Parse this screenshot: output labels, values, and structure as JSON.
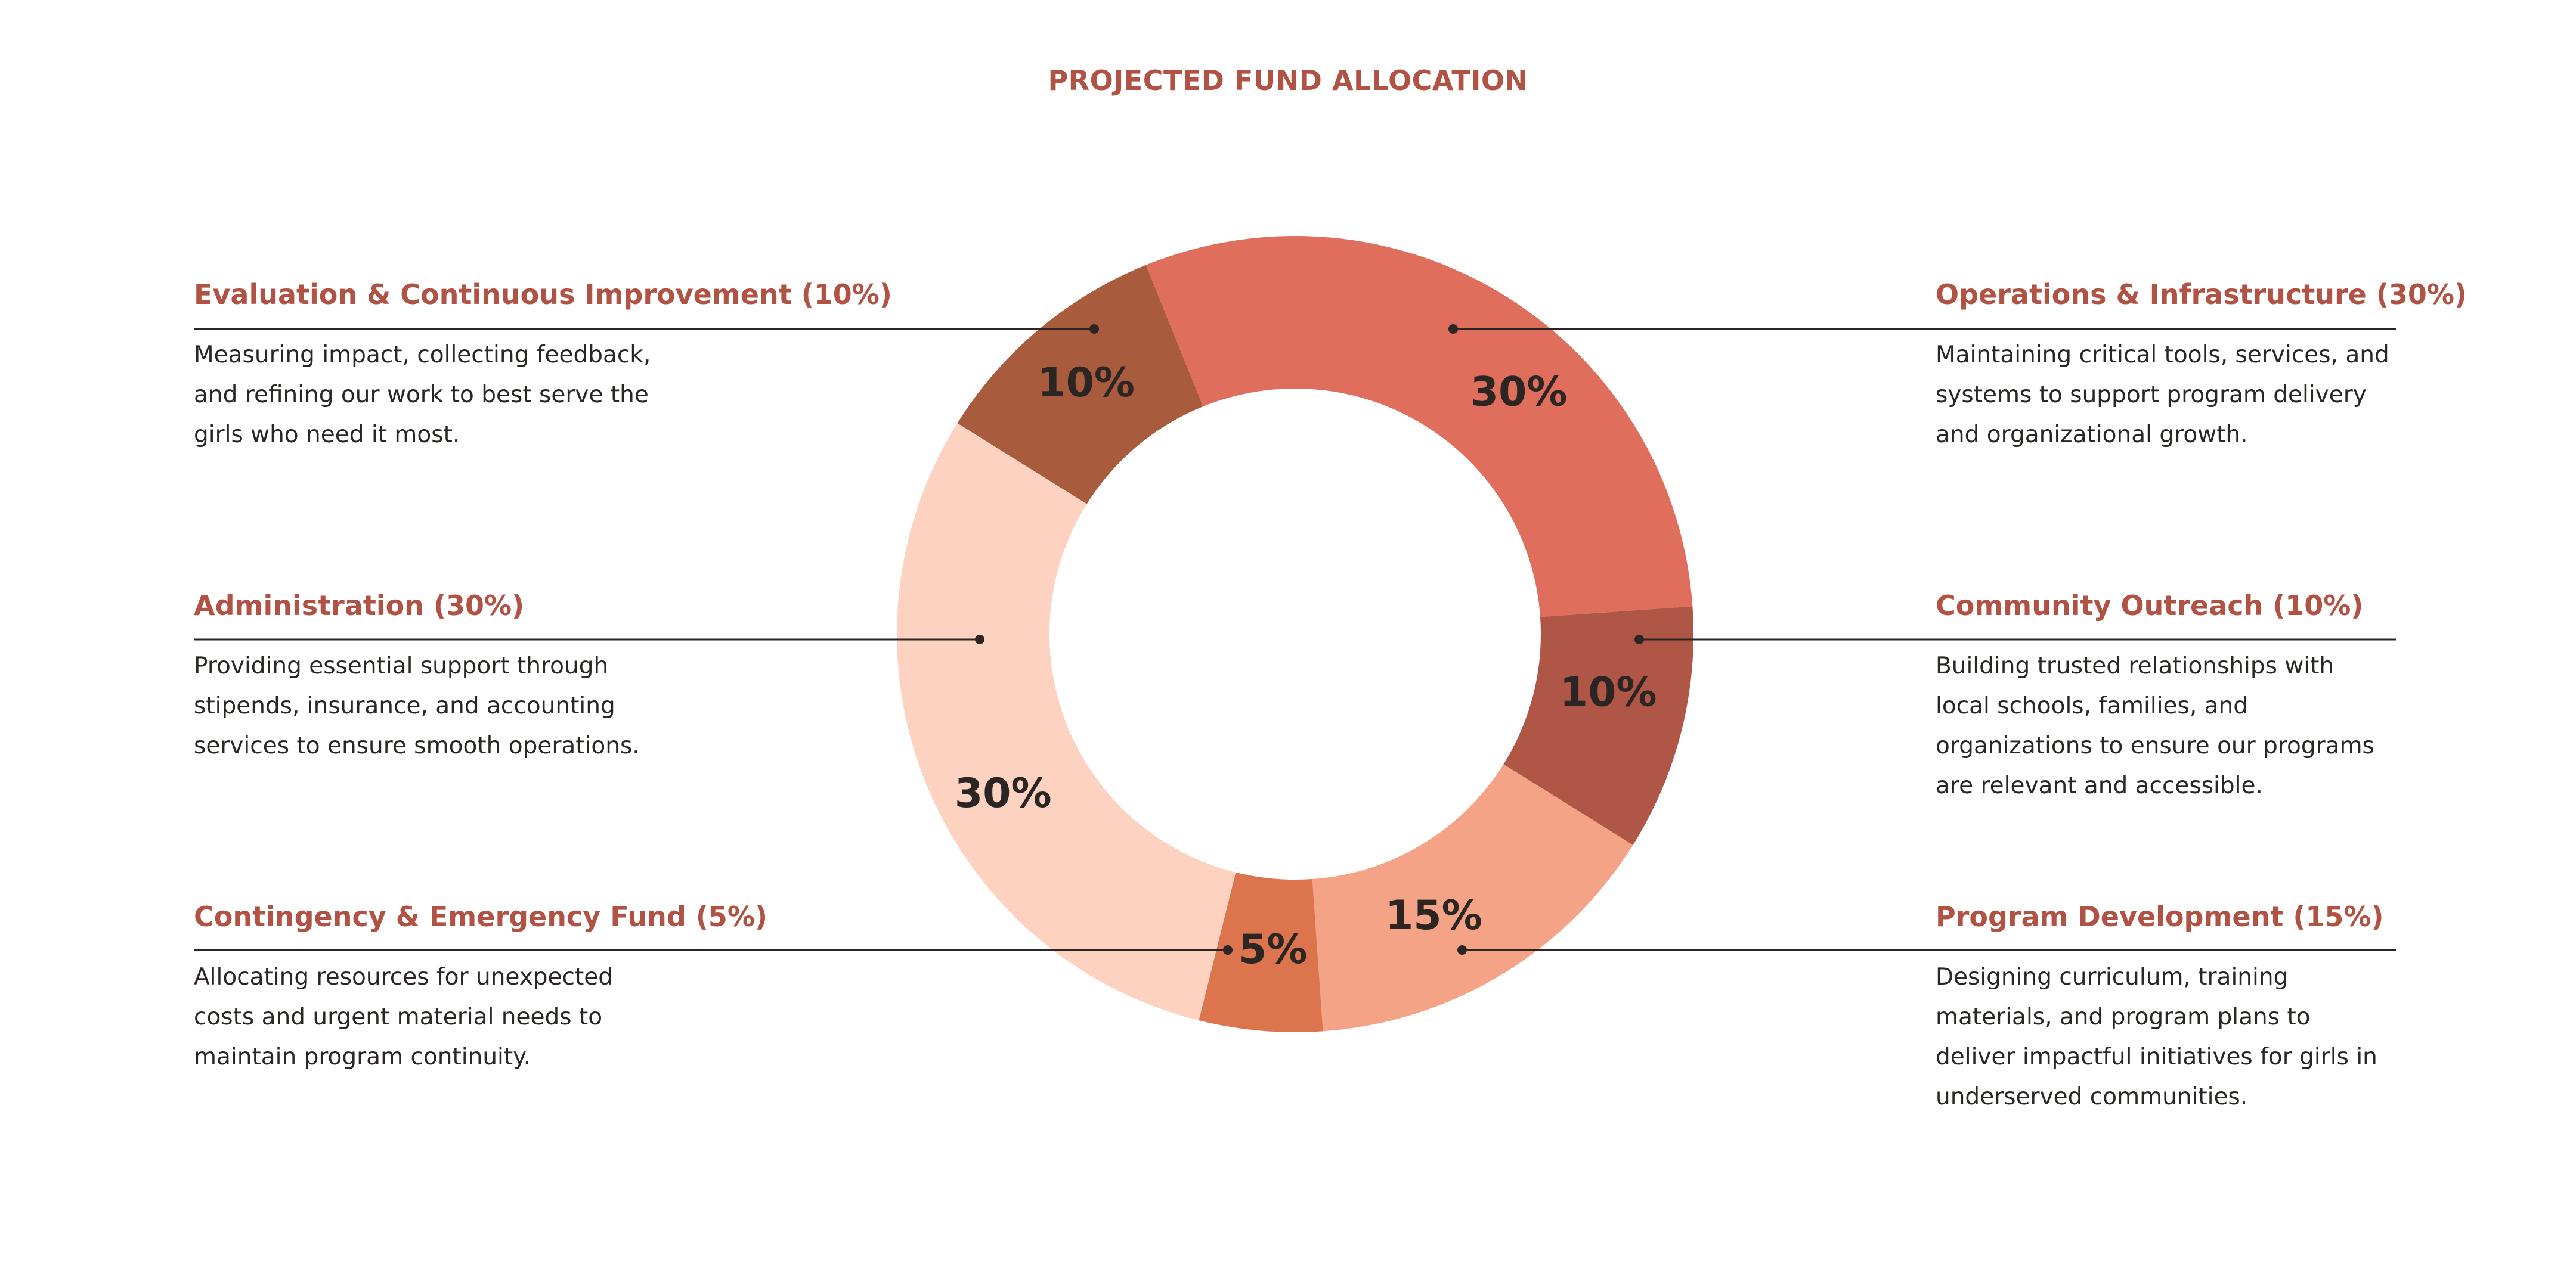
{
  "chart_data": {
    "type": "pie",
    "title": "PROJECTED FUND ALLOCATION",
    "slices": [
      {
        "name": "Operations & Infrastructure",
        "value": 30,
        "label": "30%",
        "color": "#df6e5c",
        "legend_title": "Operations & Infrastructure (30%)",
        "description": "Maintaining critical tools, services, and systems to support program delivery and organizational growth."
      },
      {
        "name": "Community Outreach",
        "value": 10,
        "label": "10%",
        "color": "#b05647",
        "legend_title": "Community Outreach (10%)",
        "description": "Building trusted relationships with local schools, families, and organizations to ensure our programs are relevant and accessible."
      },
      {
        "name": "Program Development",
        "value": 15,
        "label": "15%",
        "color": "#f4a386",
        "legend_title": "Program Development (15%)",
        "description": "Designing curriculum, training materials, and program plans to deliver impactful initiatives for girls in underserved communities."
      },
      {
        "name": "Contingency & Emergency Fund",
        "value": 5,
        "label": "5%",
        "color": "#dc744e",
        "legend_title": "Contingency & Emergency Fund (5%)",
        "description": "Allocating resources for unexpected costs and urgent material needs to maintain program continuity."
      },
      {
        "name": "Administration",
        "value": 30,
        "label": "30%",
        "color": "#fdd2c0",
        "legend_title": "Administration (30%)",
        "description": "Providing essential support through stipends, insurance, and accounting services to ensure smooth operations."
      },
      {
        "name": "Evaluation & Continuous Improvement",
        "value": 10,
        "label": "10%",
        "color": "#a95b3d",
        "legend_title": "Evaluation & Continuous Improvement (10%)",
        "description": "Measuring impact, collecting feedback, and refining our work to best serve the girls who need it most."
      }
    ]
  }
}
